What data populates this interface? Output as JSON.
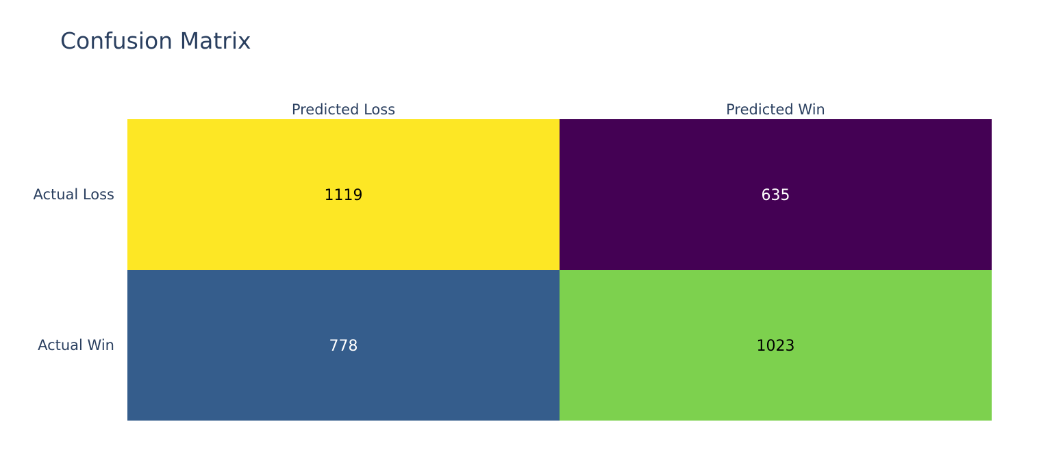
{
  "chart_data": {
    "type": "heatmap",
    "title": "Confusion Matrix",
    "x_categories": [
      "Predicted Loss",
      "Predicted Win"
    ],
    "y_categories": [
      "Actual Loss",
      "Actual Win"
    ],
    "values": [
      [
        1119,
        635
      ],
      [
        778,
        1023
      ]
    ],
    "colorscale": "viridis",
    "x_axis_side": "top",
    "grid": false,
    "legend": "none",
    "colors": {
      "text_dark": "#000000",
      "text_light": "#ffffff",
      "axis_text": "#2a3f5f"
    }
  }
}
